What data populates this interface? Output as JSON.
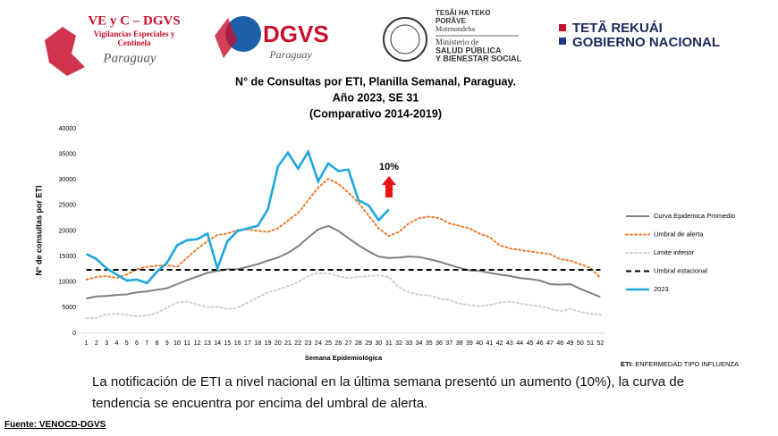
{
  "logos": {
    "vyc_title": "VE y C – DGVS",
    "vyc_sub1": "Vigilancias Especiales y",
    "vyc_sub2": "Centinela",
    "vyc_script": "Paraguay",
    "dgvs": "DGVS",
    "dgvs_script": "Paraguay",
    "msp1": "TESÃI HA TEKO",
    "msp2": "PORÂVE",
    "msp3": "Motenondeha",
    "msp4": "Ministerio de",
    "msp5": "SALUD PÚBLICA",
    "msp6": "Y BIENESTAR SOCIAL",
    "gob1": "TETÃ REKUÁI",
    "gob2": "GOBIERNO NACIONAL"
  },
  "chart_data": {
    "type": "line",
    "title": [
      "N° de Consultas por ETI, Planilla Semanal, Paraguay.",
      "Año 2023, SE 31",
      "(Comparativo 2014-2019)"
    ],
    "xlabel": "Semana Epidemiológica",
    "ylabel": "N° de consultas por ETI",
    "annotation": "10%",
    "x": [
      1,
      2,
      3,
      4,
      5,
      6,
      7,
      8,
      9,
      10,
      11,
      12,
      13,
      14,
      15,
      16,
      17,
      18,
      19,
      20,
      21,
      22,
      23,
      24,
      25,
      26,
      27,
      28,
      29,
      30,
      31,
      32,
      33,
      34,
      35,
      36,
      37,
      38,
      39,
      40,
      41,
      42,
      43,
      44,
      45,
      46,
      47,
      48,
      49,
      50,
      51,
      52
    ],
    "xlim": [
      0.5,
      52.5
    ],
    "ylim": [
      0,
      40000
    ],
    "yticks": [
      0,
      5000,
      10000,
      15000,
      20000,
      25000,
      30000,
      35000,
      40000
    ],
    "series": [
      {
        "name": "Curva Epidemica Promedio",
        "color": "#808080",
        "style": "solid",
        "values": [
          6800,
          7200,
          7300,
          7500,
          7600,
          8000,
          8200,
          8500,
          8800,
          9600,
          10400,
          11100,
          11800,
          12200,
          12500,
          12500,
          13000,
          13500,
          14200,
          14800,
          15700,
          17000,
          18700,
          20300,
          21000,
          20000,
          18600,
          17200,
          16000,
          15000,
          14700,
          14800,
          15000,
          14900,
          14500,
          14000,
          13400,
          12800,
          12300,
          12200,
          11800,
          11500,
          11200,
          10800,
          10600,
          10300,
          9600,
          9500,
          9600,
          8700,
          7900,
          7100
        ]
      },
      {
        "name": "Umbral de alerta",
        "color": "#ed7d31",
        "style": "dotted",
        "values": [
          10500,
          11000,
          11200,
          10800,
          11500,
          12500,
          13000,
          13200,
          13300,
          13000,
          14800,
          16500,
          18000,
          19200,
          19500,
          20200,
          20300,
          20000,
          19800,
          20500,
          22000,
          23500,
          26000,
          28500,
          30200,
          29200,
          27500,
          25500,
          23000,
          20500,
          19000,
          19800,
          21500,
          22500,
          22800,
          22500,
          21500,
          21000,
          20500,
          19500,
          18800,
          17200,
          16600,
          16300,
          16000,
          15700,
          15500,
          14500,
          14200,
          13500,
          12800,
          10800
        ]
      },
      {
        "name": "Limite inferior",
        "color": "#cfcfcf",
        "style": "dotted",
        "values": [
          2900,
          3000,
          3700,
          3800,
          3600,
          3300,
          3500,
          4000,
          5000,
          6000,
          6200,
          5600,
          5100,
          5200,
          4700,
          5000,
          6000,
          7000,
          8000,
          8500,
          9200,
          10000,
          11200,
          11800,
          11700,
          11200,
          10800,
          11000,
          11200,
          11300,
          11000,
          9000,
          8000,
          7500,
          7400,
          6800,
          6500,
          5800,
          5500,
          5300,
          5500,
          6000,
          6200,
          5800,
          5500,
          5300,
          4800,
          4300,
          4800,
          4200,
          3800,
          3600
        ]
      },
      {
        "name": "Umbral estacional",
        "color": "#000000",
        "style": "dashed",
        "values": [
          12400,
          12400,
          12400,
          12400,
          12400,
          12400,
          12400,
          12400,
          12400,
          12400,
          12400,
          12400,
          12400,
          12400,
          12400,
          12400,
          12400,
          12400,
          12400,
          12400,
          12400,
          12400,
          12400,
          12400,
          12400,
          12400,
          12400,
          12400,
          12400,
          12400,
          12400,
          12400,
          12400,
          12400,
          12400,
          12400,
          12400,
          12400,
          12400,
          12400,
          12400,
          12400,
          12400,
          12400,
          12400,
          12400,
          12400,
          12400,
          12400,
          12400,
          12400,
          12400
        ]
      },
      {
        "name": "2023",
        "color": "#1ea7e1",
        "style": "solid",
        "values": [
          15500,
          14500,
          12700,
          11500,
          10300,
          10500,
          9800,
          12000,
          13800,
          17200,
          18200,
          18400,
          19500,
          12700,
          18000,
          20000,
          20500,
          21000,
          24200,
          32600,
          35300,
          32200,
          35500,
          29700,
          33200,
          31700,
          32000,
          26000,
          25000,
          22100,
          24200,
          null,
          null,
          null,
          null,
          null,
          null,
          null,
          null,
          null,
          null,
          null,
          null,
          null,
          null,
          null,
          null,
          null,
          null,
          null,
          null,
          null
        ]
      }
    ]
  },
  "note_label": "ETI:",
  "note_text": "ENFERMEDAD TIPO INFLUENZA",
  "description": "La notificación de ETI a nivel nacional en la última semana presentó un aumento (10%),  la curva de tendencia se encuentra  por encima del umbral de alerta.",
  "source": "Fuente: VENOCD-DGVS"
}
